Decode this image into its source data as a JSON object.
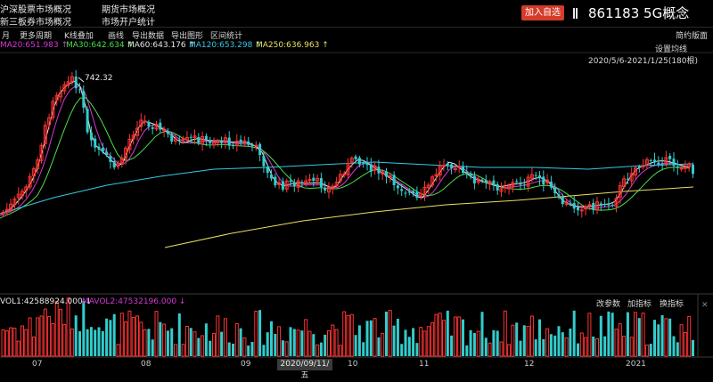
{
  "top": {
    "links": [
      "沪深股票市场概况",
      "期货市场概况",
      "新三板券市场概况",
      "市场开户统计"
    ],
    "add_button": "加入自选",
    "ticker": "861183 5G概念"
  },
  "toolbar": [
    "月",
    "更多周期",
    "K线叠加",
    "画线",
    "导出数据",
    "导出图形",
    "区间统计"
  ],
  "toolbar_right": "简约版面",
  "ma_legend": [
    {
      "label": "MA20:651.983 ↑",
      "color": "#d838d8"
    },
    {
      "label": "MA30:642.634 ↑",
      "color": "#4ae04a"
    },
    {
      "label": "MA60:643.176 ↑",
      "color": "#e8e8e8"
    },
    {
      "label": "MA120:653.298 ↑",
      "color": "#38c8e8"
    },
    {
      "label": "MA250:636.963 ↑",
      "color": "#e8e060"
    }
  ],
  "settings_label": "设置均线",
  "range_label": "2020/5/6-2021/1/25(180根)",
  "peak_label": "742.32",
  "vol_legend": [
    {
      "label": "VOL1:42588924.000 ↓",
      "color": "#e8e8e8"
    },
    {
      "label": "MAVOL2:47532196.000 ↓",
      "color": "#d838d8"
    }
  ],
  "vol_buttons": [
    "改参数",
    "加指标",
    "换指标"
  ],
  "x_axis": [
    "07",
    "08",
    "09",
    "10",
    "11",
    "12",
    "2021"
  ],
  "crosshair_date": "2020/09/11/五",
  "colors": {
    "up": "#ff3333",
    "down": "#33cccc",
    "bg": "#000000"
  }
}
